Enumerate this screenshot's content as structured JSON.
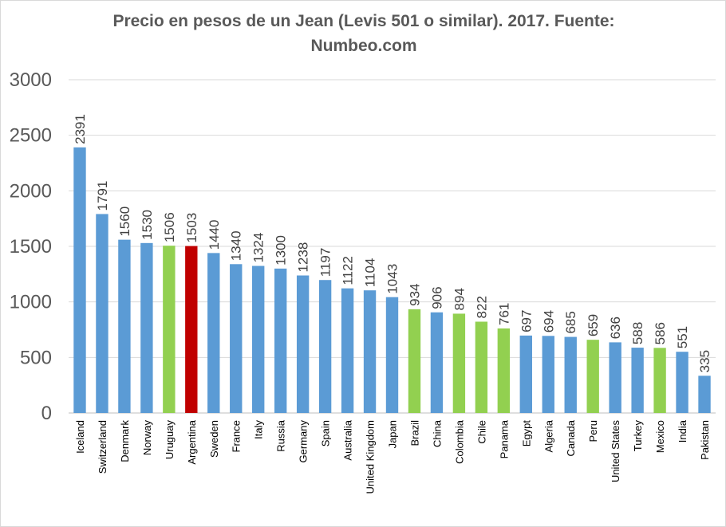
{
  "chart_data": {
    "type": "bar",
    "title": "Precio en pesos de un Jean (Levis 501 o similar). 2017. Fuente: Numbeo.com",
    "xlabel": "",
    "ylabel": "",
    "ylim": [
      0,
      3000
    ],
    "yticks": [
      0,
      500,
      1000,
      1500,
      2000,
      2500,
      3000
    ],
    "grid": true,
    "legend": "none",
    "categories": [
      "Iceland",
      "Switzerland",
      "Denmark",
      "Norway",
      "Uruguay",
      "Argentina",
      "Sweden",
      "France",
      "Italy",
      "Russia",
      "Germany",
      "Spain",
      "Australia",
      "United Kingdom",
      "Japan",
      "Brazil",
      "China",
      "Colombia",
      "Chile",
      "Panama",
      "Egypt",
      "Algeria",
      "Canada",
      "Peru",
      "United States",
      "Turkey",
      "Mexico",
      "India",
      "Pakistan"
    ],
    "values": [
      2391,
      1791,
      1560,
      1530,
      1506,
      1503,
      1440,
      1340,
      1324,
      1300,
      1238,
      1197,
      1122,
      1104,
      1043,
      934,
      906,
      894,
      822,
      761,
      697,
      694,
      685,
      659,
      636,
      588,
      586,
      551,
      335
    ],
    "bar_colors": [
      "#5b9bd5",
      "#5b9bd5",
      "#5b9bd5",
      "#5b9bd5",
      "#92d050",
      "#c00000",
      "#5b9bd5",
      "#5b9bd5",
      "#5b9bd5",
      "#5b9bd5",
      "#5b9bd5",
      "#5b9bd5",
      "#5b9bd5",
      "#5b9bd5",
      "#5b9bd5",
      "#92d050",
      "#5b9bd5",
      "#92d050",
      "#92d050",
      "#92d050",
      "#5b9bd5",
      "#5b9bd5",
      "#5b9bd5",
      "#92d050",
      "#5b9bd5",
      "#5b9bd5",
      "#92d050",
      "#5b9bd5",
      "#5b9bd5"
    ]
  }
}
